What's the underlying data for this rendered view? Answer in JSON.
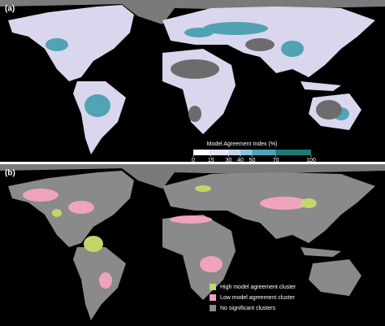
{
  "panels": [
    {
      "label": "(a)"
    },
    {
      "label": "(b)"
    }
  ],
  "colorbar": {
    "title": "Model Agreement Index (%)",
    "ticks": [
      0,
      15,
      30,
      40,
      50,
      70,
      100
    ],
    "colors": [
      "#ffffff",
      "#e6e3f3",
      "#c2d5eb",
      "#8fc3dd",
      "#4ba6b6",
      "#1d7b74"
    ]
  },
  "legend": [
    {
      "name": "High model agreement cluster",
      "color": "#c2d66a"
    },
    {
      "name": "Low model agreement cluster",
      "color": "#f0a3bd"
    },
    {
      "name": "No significant clusters",
      "color": "#8a8a8a"
    }
  ]
}
